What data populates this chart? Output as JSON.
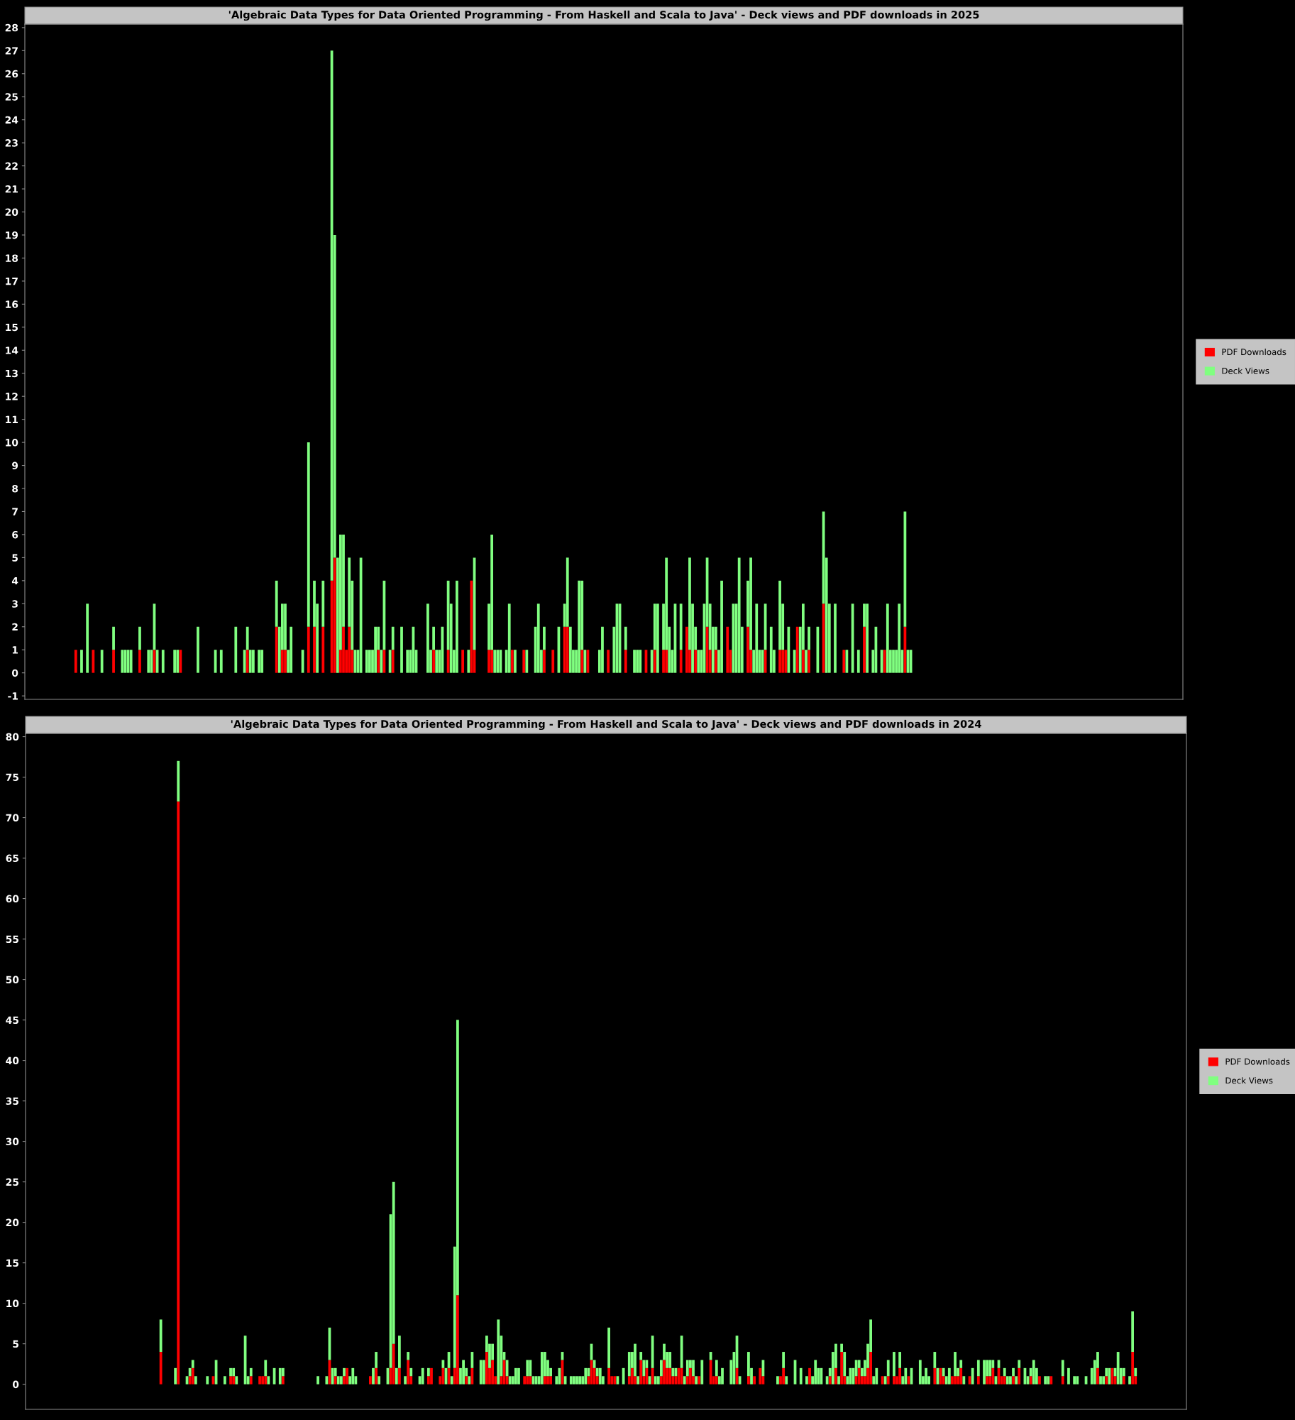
{
  "chart_data": [
    {
      "type": "bar",
      "title": "'Algebraic Data Types for Data Oriented Programming - From Haskell and Scala to Java' - Deck views and PDF downloads in 2025",
      "stacked": true,
      "legend": "right",
      "tick_labels": "y",
      "categories": [
        null,
        null,
        null,
        null,
        null,
        null,
        null,
        null,
        null,
        null,
        null,
        null,
        null,
        null,
        null,
        null,
        null,
        null,
        null,
        null,
        null,
        null,
        null,
        null,
        null,
        null,
        null,
        null,
        null,
        null,
        null,
        null,
        null,
        null,
        null,
        null,
        null,
        null,
        null,
        null,
        null,
        null,
        null,
        null,
        null,
        null,
        null,
        null,
        null,
        null,
        null,
        null,
        null,
        null,
        null,
        null,
        null,
        null,
        null,
        null,
        null,
        null,
        null,
        null,
        null,
        null,
        null,
        null,
        null,
        null,
        null,
        null,
        null,
        null,
        null,
        null,
        null,
        null,
        null,
        null,
        null,
        null,
        null,
        null,
        null,
        null,
        null,
        null,
        null,
        null,
        null,
        null,
        null,
        null,
        null,
        null,
        null,
        null,
        null,
        null,
        null,
        null,
        null,
        null,
        null,
        null,
        null,
        null,
        null,
        null,
        null,
        null,
        null,
        null,
        null,
        null,
        null,
        null,
        null,
        null,
        null,
        null,
        null,
        null,
        null,
        null,
        null,
        null,
        null,
        null,
        null,
        null,
        null,
        null,
        null,
        null,
        null,
        null,
        null,
        null,
        null,
        null,
        null,
        null,
        null,
        null,
        null,
        null,
        null,
        null,
        null,
        null,
        null,
        null,
        null,
        null,
        null,
        null,
        null,
        null,
        null,
        null,
        null,
        null,
        null,
        null,
        null,
        null,
        null,
        null,
        null,
        null,
        null,
        null,
        null,
        null,
        null,
        null,
        null,
        null,
        null,
        null,
        null,
        null,
        null,
        null,
        null,
        null,
        null,
        null,
        null,
        null,
        null,
        null,
        null,
        null,
        null,
        null,
        null,
        null,
        null,
        null,
        null,
        null,
        null,
        null,
        null,
        null,
        null,
        null,
        null,
        null,
        null,
        null,
        null,
        null,
        null,
        null,
        null,
        null,
        null,
        null,
        null,
        null,
        null,
        null,
        null,
        null,
        null,
        null,
        null,
        null,
        null,
        null,
        null,
        null,
        null,
        null,
        null,
        null,
        null,
        null,
        null,
        null,
        null,
        null,
        null,
        null,
        null,
        null,
        null,
        null,
        null,
        null,
        null,
        null,
        null,
        null,
        null,
        null,
        null,
        null,
        null,
        null,
        null,
        null,
        null,
        null,
        null,
        null,
        null,
        null,
        null,
        null,
        null,
        null,
        null,
        null,
        null,
        null,
        null,
        null,
        null,
        null,
        null,
        null,
        null,
        null,
        null,
        null,
        null,
        null,
        null,
        null,
        null,
        null,
        null,
        null,
        null,
        null,
        null,
        null,
        null,
        null,
        null,
        null,
        null,
        null,
        null,
        null,
        null,
        null,
        null,
        null,
        null,
        null,
        null,
        null,
        null,
        null,
        null,
        null,
        null,
        null,
        null,
        null,
        null,
        null,
        null,
        null,
        null,
        null,
        null,
        null,
        null,
        null,
        null,
        null,
        null,
        null,
        null,
        null,
        null,
        null,
        null,
        null,
        null,
        null,
        null,
        null,
        null,
        null,
        null,
        null,
        null,
        null,
        null,
        null,
        null,
        null,
        null,
        null,
        null,
        null,
        null,
        null,
        null,
        null,
        null,
        null,
        null,
        null,
        null,
        null,
        null,
        null,
        null,
        null,
        null,
        null,
        null,
        null,
        null,
        null,
        null,
        null,
        null,
        null,
        null,
        null,
        null,
        null,
        null,
        null,
        null,
        null,
        null,
        null
      ],
      "series": [
        {
          "name": "PDF Downloads",
          "color": "#ff0000",
          "values": [
            0,
            0,
            0,
            0,
            0,
            0,
            0,
            0,
            0,
            0,
            0,
            0,
            0,
            0,
            0,
            0,
            0,
            1,
            0,
            0,
            0,
            0,
            0,
            1,
            0,
            0,
            0,
            0,
            0,
            0,
            1,
            0,
            0,
            0,
            0,
            0,
            0,
            0,
            0,
            1,
            0,
            0,
            0,
            0,
            1,
            0,
            0,
            0,
            0,
            0,
            0,
            0,
            0,
            1,
            0,
            0,
            0,
            0,
            0,
            0,
            0,
            0,
            0,
            0,
            0,
            0,
            0,
            0,
            0,
            0,
            0,
            0,
            0,
            0,
            0,
            0,
            1,
            0,
            0,
            0,
            0,
            0,
            0,
            0,
            0,
            0,
            2,
            0,
            1,
            1,
            0,
            0,
            0,
            0,
            0,
            0,
            0,
            2,
            0,
            2,
            0,
            0,
            2,
            0,
            0,
            4,
            5,
            0,
            1,
            2,
            1,
            2,
            1,
            0,
            0,
            0,
            0,
            0,
            0,
            0,
            0,
            1,
            0,
            1,
            0,
            0,
            1,
            0,
            0,
            0,
            0,
            0,
            0,
            0,
            0,
            0,
            0,
            0,
            0,
            0,
            1,
            0,
            0,
            0,
            0,
            1,
            0,
            0,
            0,
            0,
            1,
            0,
            0,
            4,
            1,
            0,
            0,
            0,
            0,
            1,
            1,
            0,
            0,
            0,
            0,
            0,
            0,
            1,
            0,
            0,
            0,
            1,
            0,
            0,
            0,
            0,
            0,
            0,
            1,
            0,
            0,
            1,
            0,
            0,
            0,
            2,
            2,
            0,
            0,
            0,
            0,
            1,
            0,
            1,
            0,
            0,
            0,
            0,
            0,
            0,
            1,
            0,
            0,
            0,
            0,
            0,
            1,
            0,
            0,
            0,
            0,
            0,
            0,
            1,
            0,
            0,
            1,
            0,
            0,
            1,
            1,
            0,
            0,
            0,
            0,
            1,
            0,
            2,
            1,
            0,
            1,
            0,
            0,
            0,
            2,
            1,
            0,
            1,
            0,
            0,
            0,
            2,
            1,
            0,
            0,
            0,
            0,
            0,
            2,
            1,
            0,
            0,
            0,
            0,
            1,
            0,
            0,
            0,
            0,
            1,
            1,
            1,
            0,
            0,
            0,
            2,
            0,
            1,
            0,
            1,
            0,
            0,
            0,
            0,
            3,
            0,
            0,
            0,
            0,
            0,
            0,
            1,
            0,
            0,
            0,
            0,
            0,
            0,
            2,
            0,
            0,
            0,
            0,
            0,
            0,
            1,
            0,
            0,
            0,
            0,
            0,
            0,
            2,
            0,
            0,
            0,
            0,
            0,
            0,
            0,
            0,
            0,
            0,
            0,
            0,
            0,
            0,
            0,
            0,
            0,
            0,
            0,
            0,
            0,
            0,
            0,
            0,
            0,
            0,
            0,
            0,
            0,
            0,
            0,
            0,
            0,
            0,
            0,
            0,
            0,
            0,
            0,
            0,
            0,
            0,
            0,
            0,
            0,
            0,
            0,
            0,
            0,
            0,
            0,
            0,
            0,
            0,
            0,
            0,
            0,
            0,
            0,
            0,
            0,
            0,
            0,
            0,
            0,
            0,
            0,
            0,
            0,
            0,
            0,
            0,
            0,
            0,
            0,
            0,
            0,
            0,
            0,
            0,
            0,
            0,
            0,
            0,
            0,
            0,
            0,
            0,
            0,
            0,
            0,
            0,
            0,
            0,
            0
          ]
        },
        {
          "name": "Deck Views",
          "color": "#80ff80",
          "values": [
            0,
            0,
            0,
            0,
            0,
            0,
            0,
            0,
            0,
            0,
            0,
            0,
            0,
            0,
            0,
            0,
            0,
            0,
            0,
            1,
            0,
            3,
            0,
            0,
            0,
            0,
            1,
            0,
            0,
            0,
            1,
            0,
            0,
            1,
            1,
            1,
            1,
            0,
            0,
            1,
            0,
            0,
            1,
            1,
            2,
            1,
            0,
            1,
            0,
            0,
            0,
            1,
            1,
            0,
            0,
            0,
            0,
            0,
            0,
            2,
            0,
            0,
            0,
            0,
            0,
            1,
            0,
            1,
            0,
            0,
            0,
            0,
            2,
            0,
            0,
            1,
            1,
            1,
            1,
            0,
            1,
            1,
            0,
            0,
            0,
            0,
            2,
            2,
            2,
            2,
            1,
            2,
            0,
            0,
            0,
            1,
            0,
            8,
            0,
            2,
            3,
            0,
            2,
            0,
            0,
            23,
            14,
            5,
            5,
            4,
            0,
            3,
            3,
            1,
            1,
            5,
            0,
            1,
            1,
            1,
            2,
            1,
            1,
            3,
            0,
            1,
            1,
            0,
            0,
            2,
            0,
            1,
            1,
            2,
            1,
            0,
            0,
            0,
            3,
            1,
            1,
            1,
            1,
            2,
            0,
            3,
            3,
            1,
            4,
            0,
            0,
            0,
            1,
            0,
            4,
            0,
            0,
            0,
            0,
            2,
            5,
            1,
            1,
            1,
            0,
            1,
            3,
            0,
            1,
            0,
            0,
            0,
            1,
            0,
            0,
            2,
            3,
            1,
            1,
            0,
            0,
            0,
            0,
            2,
            0,
            1,
            3,
            2,
            1,
            1,
            4,
            3,
            1,
            0,
            0,
            0,
            0,
            1,
            2,
            0,
            0,
            0,
            2,
            3,
            3,
            0,
            1,
            0,
            0,
            1,
            1,
            1,
            0,
            0,
            0,
            1,
            2,
            3,
            0,
            2,
            4,
            2,
            1,
            3,
            0,
            2,
            0,
            0,
            4,
            3,
            1,
            1,
            1,
            3,
            3,
            2,
            2,
            1,
            1,
            4,
            0,
            0,
            0,
            3,
            3,
            5,
            2,
            0,
            2,
            4,
            1,
            3,
            1,
            1,
            2,
            0,
            2,
            1,
            0,
            3,
            2,
            0,
            2,
            0,
            1,
            0,
            2,
            2,
            1,
            1,
            0,
            0,
            2,
            0,
            4,
            5,
            3,
            0,
            3,
            0,
            0,
            0,
            1,
            0,
            3,
            0,
            1,
            0,
            1,
            3,
            0,
            1,
            2,
            0,
            1,
            0,
            3,
            1,
            1,
            1,
            3,
            1,
            5,
            1,
            1,
            0,
            0,
            0,
            0,
            0,
            0,
            0,
            0,
            0,
            0,
            0,
            0,
            0,
            0,
            0,
            0,
            0,
            0,
            0,
            0,
            0,
            0,
            0,
            0,
            0,
            0,
            0,
            0,
            0,
            0,
            0,
            0,
            0,
            0,
            0,
            0,
            0,
            0,
            0,
            0,
            0,
            0,
            0,
            0,
            0,
            0,
            0,
            0,
            0,
            0,
            0,
            0,
            0,
            0,
            0,
            0,
            0,
            0,
            0,
            0,
            0,
            0,
            0,
            0,
            0,
            0,
            0,
            0,
            0,
            0,
            0,
            0,
            0,
            0,
            0,
            0,
            0,
            0,
            0,
            0,
            0,
            0,
            0,
            0,
            0,
            0,
            0,
            0,
            0,
            0,
            0,
            0,
            0
          ]
        }
      ],
      "ylim": [
        -1.15,
        28.15
      ],
      "yticks": [
        -1,
        0,
        1,
        2,
        3,
        4,
        5,
        6,
        7,
        8,
        9,
        10,
        11,
        12,
        13,
        14,
        15,
        16,
        17,
        18,
        19,
        20,
        21,
        22,
        23,
        24,
        25,
        26,
        27,
        28
      ]
    },
    {
      "type": "bar",
      "title": "'Algebraic Data Types for Data Oriented Programming - From Haskell and Scala to Java' - Deck views and PDF downloads in 2024",
      "stacked": true,
      "legend": "right",
      "tick_labels": "y",
      "categories": [
        null,
        null,
        null,
        null,
        null,
        null,
        null,
        null,
        null,
        null,
        null,
        null,
        null,
        null,
        null,
        null,
        null,
        null,
        null,
        null,
        null,
        null,
        null,
        null,
        null,
        null,
        null,
        null,
        null,
        null,
        null,
        null,
        null,
        null,
        null,
        null,
        null,
        null,
        null,
        null,
        null,
        null,
        null,
        null,
        null,
        null,
        null,
        null,
        null,
        null,
        null,
        null,
        null,
        null,
        null,
        null,
        null,
        null,
        null,
        null,
        null,
        null,
        null,
        null,
        null,
        null,
        null,
        null,
        null,
        null,
        null,
        null,
        null,
        null,
        null,
        null,
        null,
        null,
        null,
        null,
        null,
        null,
        null,
        null,
        null,
        null,
        null,
        null,
        null,
        null,
        null,
        null,
        null,
        null,
        null,
        null,
        null,
        null,
        null,
        null,
        null,
        null,
        null,
        null,
        null,
        null,
        null,
        null,
        null,
        null,
        null,
        null,
        null,
        null,
        null,
        null,
        null,
        null,
        null,
        null,
        null,
        null,
        null,
        null,
        null,
        null,
        null,
        null,
        null,
        null,
        null,
        null,
        null,
        null,
        null,
        null,
        null,
        null,
        null,
        null,
        null,
        null,
        null,
        null,
        null,
        null,
        null,
        null,
        null,
        null,
        null,
        null,
        null,
        null,
        null,
        null,
        null,
        null,
        null,
        null,
        null,
        null,
        null,
        null,
        null,
        null,
        null,
        null,
        null,
        null,
        null,
        null,
        null,
        null,
        null,
        null,
        null,
        null,
        null,
        null,
        null,
        null,
        null,
        null,
        null,
        null,
        null,
        null,
        null,
        null,
        null,
        null,
        null,
        null,
        null,
        null,
        null,
        null,
        null,
        null,
        null,
        null,
        null,
        null,
        null,
        null,
        null,
        null,
        null,
        null,
        null,
        null,
        null,
        null,
        null,
        null,
        null,
        null,
        null,
        null,
        null,
        null,
        null,
        null,
        null,
        null,
        null,
        null,
        null,
        null,
        null,
        null,
        null,
        null,
        null,
        null,
        null,
        null,
        null,
        null,
        null,
        null,
        null,
        null,
        null,
        null,
        null,
        null,
        null,
        null,
        null,
        null,
        null,
        null,
        null,
        null,
        null,
        null,
        null,
        null,
        null,
        null,
        null,
        null,
        null,
        null,
        null,
        null,
        null,
        null,
        null,
        null,
        null,
        null,
        null,
        null,
        null,
        null,
        null,
        null,
        null,
        null,
        null,
        null,
        null,
        null,
        null,
        null,
        null,
        null,
        null,
        null,
        null,
        null,
        null,
        null,
        null,
        null,
        null,
        null,
        null,
        null,
        null,
        null,
        null,
        null,
        null,
        null,
        null,
        null,
        null,
        null,
        null,
        null,
        null,
        null,
        null,
        null,
        null,
        null,
        null,
        null,
        null,
        null,
        null,
        null,
        null,
        null,
        null,
        null,
        null,
        null,
        null,
        null,
        null,
        null,
        null,
        null,
        null,
        null,
        null,
        null,
        null,
        null,
        null,
        null,
        null,
        null,
        null,
        null,
        null,
        null,
        null,
        null,
        null,
        null,
        null,
        null,
        null,
        null,
        null,
        null,
        null,
        null,
        null,
        null,
        null,
        null,
        null,
        null,
        null,
        null,
        null,
        null,
        null,
        null,
        null,
        null,
        null,
        null,
        null,
        null,
        null,
        null,
        null,
        null,
        null,
        null,
        null,
        null,
        null,
        null,
        null,
        null,
        null,
        null,
        null,
        null,
        null
      ],
      "series": [
        {
          "name": "PDF Downloads",
          "color": "#ff0000",
          "values": [
            0,
            0,
            0,
            0,
            0,
            0,
            0,
            0,
            0,
            0,
            0,
            0,
            0,
            0,
            0,
            0,
            0,
            0,
            0,
            0,
            0,
            0,
            0,
            0,
            0,
            0,
            0,
            0,
            0,
            0,
            0,
            0,
            0,
            0,
            0,
            0,
            0,
            0,
            0,
            0,
            0,
            0,
            0,
            0,
            0,
            0,
            4,
            0,
            0,
            0,
            0,
            0,
            72,
            0,
            0,
            0,
            1,
            2,
            0,
            0,
            0,
            0,
            0,
            0,
            1,
            0,
            0,
            0,
            0,
            0,
            1,
            1,
            0,
            0,
            0,
            0,
            0,
            1,
            0,
            0,
            1,
            1,
            1,
            0,
            0,
            0,
            0,
            0,
            1,
            0,
            0,
            0,
            0,
            0,
            0,
            0,
            0,
            0,
            0,
            0,
            0,
            0,
            0,
            0,
            3,
            0,
            1,
            0,
            0,
            1,
            2,
            0,
            0,
            0,
            0,
            0,
            0,
            0,
            1,
            0,
            2,
            0,
            0,
            0,
            0,
            2,
            5,
            0,
            2,
            0,
            0,
            3,
            1,
            0,
            0,
            0,
            0,
            0,
            1,
            2,
            0,
            0,
            1,
            2,
            0,
            2,
            0,
            2,
            11,
            0,
            0,
            1,
            0,
            2,
            0,
            0,
            0,
            0,
            4,
            2,
            3,
            1,
            0,
            1,
            3,
            1,
            0,
            0,
            0,
            0,
            0,
            1,
            1,
            1,
            0,
            0,
            0,
            0,
            1,
            1,
            1,
            0,
            0,
            0,
            3,
            0,
            0,
            0,
            0,
            0,
            0,
            0,
            0,
            1,
            3,
            2,
            1,
            0,
            0,
            0,
            2,
            1,
            1,
            0,
            0,
            0,
            0,
            1,
            2,
            1,
            0,
            3,
            1,
            2,
            0,
            2,
            0,
            0,
            1,
            3,
            2,
            2,
            1,
            1,
            2,
            2,
            0,
            1,
            2,
            1,
            0,
            1,
            0,
            0,
            0,
            3,
            1,
            1,
            0,
            0,
            0,
            0,
            0,
            0,
            2,
            0,
            0,
            0,
            1,
            0,
            1,
            0,
            2,
            1,
            0,
            0,
            0,
            0,
            0,
            1,
            2,
            0,
            0,
            0,
            0,
            0,
            0,
            0,
            0,
            2,
            0,
            0,
            0,
            0,
            0,
            0,
            1,
            0,
            2,
            0,
            4,
            1,
            0,
            0,
            0,
            1,
            2,
            1,
            1,
            2,
            4,
            0,
            0,
            0,
            1,
            0,
            1,
            0,
            1,
            1,
            2,
            0,
            0,
            1,
            0,
            0,
            0,
            0,
            0,
            0,
            0,
            0,
            2,
            0,
            2,
            1,
            0,
            0,
            1,
            1,
            1,
            2,
            0,
            0,
            1,
            0,
            0,
            1,
            0,
            0,
            1,
            1,
            2,
            0,
            2,
            1,
            1,
            0,
            0,
            1,
            0,
            2,
            0,
            0,
            0,
            1,
            0,
            0,
            1,
            0,
            0,
            0,
            1,
            0,
            0,
            0,
            1,
            0,
            0,
            0,
            0,
            0,
            0,
            0,
            0,
            0,
            0,
            0,
            2,
            0,
            0,
            1,
            0,
            2,
            1,
            0,
            0,
            1,
            0,
            0,
            4,
            1,
            0,
            0,
            0,
            0,
            0,
            0,
            0,
            0,
            0,
            0,
            0,
            0,
            0,
            0,
            0,
            0,
            0
          ]
        },
        {
          "name": "Deck Views",
          "color": "#80ff80",
          "values": [
            0,
            0,
            0,
            0,
            0,
            0,
            0,
            0,
            0,
            0,
            0,
            0,
            0,
            0,
            0,
            0,
            0,
            0,
            0,
            0,
            0,
            0,
            0,
            0,
            0,
            0,
            0,
            0,
            0,
            0,
            0,
            0,
            0,
            0,
            0,
            0,
            0,
            0,
            0,
            0,
            0,
            0,
            0,
            0,
            0,
            0,
            4,
            0,
            0,
            0,
            0,
            2,
            5,
            0,
            0,
            1,
            1,
            1,
            1,
            0,
            0,
            0,
            1,
            0,
            0,
            3,
            0,
            0,
            1,
            0,
            1,
            1,
            1,
            0,
            0,
            6,
            1,
            1,
            0,
            0,
            0,
            0,
            2,
            1,
            0,
            2,
            0,
            2,
            1,
            0,
            0,
            0,
            0,
            0,
            0,
            0,
            0,
            0,
            0,
            0,
            1,
            0,
            0,
            1,
            4,
            2,
            1,
            1,
            1,
            1,
            0,
            1,
            2,
            1,
            0,
            0,
            0,
            0,
            0,
            2,
            2,
            1,
            0,
            0,
            2,
            19,
            20,
            2,
            4,
            0,
            1,
            1,
            1,
            0,
            0,
            1,
            2,
            0,
            1,
            0,
            0,
            0,
            0,
            1,
            2,
            2,
            1,
            15,
            34,
            2,
            3,
            1,
            1,
            2,
            0,
            0,
            3,
            3,
            2,
            3,
            2,
            0,
            8,
            5,
            1,
            2,
            1,
            1,
            2,
            2,
            0,
            0,
            2,
            2,
            1,
            1,
            1,
            4,
            3,
            2,
            1,
            0,
            1,
            2,
            1,
            1,
            0,
            1,
            1,
            1,
            1,
            1,
            2,
            1,
            2,
            1,
            1,
            2,
            1,
            0,
            5,
            0,
            0,
            1,
            0,
            2,
            0,
            3,
            2,
            4,
            1,
            1,
            2,
            1,
            1,
            4,
            1,
            1,
            2,
            2,
            2,
            2,
            1,
            1,
            0,
            4,
            1,
            2,
            1,
            2,
            1,
            0,
            3,
            0,
            0,
            1,
            0,
            2,
            1,
            2,
            0,
            0,
            3,
            4,
            4,
            1,
            0,
            0,
            3,
            2,
            0,
            0,
            0,
            2,
            0,
            0,
            0,
            0,
            1,
            0,
            2,
            1,
            0,
            0,
            3,
            0,
            2,
            0,
            1,
            0,
            1,
            3,
            2,
            2,
            0,
            1,
            1,
            4,
            3,
            1,
            1,
            3,
            1,
            2,
            2,
            2,
            1,
            1,
            2,
            3,
            4,
            1,
            2,
            0,
            0,
            1,
            2,
            0,
            3,
            0,
            2,
            1,
            2,
            0,
            2,
            0,
            0,
            3,
            1,
            2,
            1,
            0,
            2,
            2,
            0,
            1,
            1,
            2,
            0,
            3,
            1,
            1,
            1,
            0,
            0,
            2,
            0,
            2,
            0,
            3,
            2,
            2,
            1,
            1,
            1,
            0,
            1,
            1,
            1,
            1,
            1,
            1,
            0,
            2,
            1,
            1,
            3,
            2,
            0,
            0,
            1,
            1,
            0,
            0,
            0,
            0,
            2,
            0,
            2,
            0,
            1,
            1,
            0,
            0,
            1,
            0,
            2,
            3,
            2,
            1,
            1,
            1,
            2,
            0,
            1,
            4,
            2,
            1,
            0,
            1,
            5,
            1,
            0,
            0,
            0,
            0,
            0,
            0,
            0,
            0,
            0,
            0,
            0,
            0,
            0,
            0,
            0,
            0,
            0
          ]
        }
      ],
      "ylim": [
        -3.1,
        80.4
      ],
      "yticks": [
        0,
        5,
        10,
        15,
        20,
        25,
        30,
        35,
        40,
        45,
        50,
        55,
        60,
        65,
        70,
        75,
        80
      ]
    }
  ]
}
